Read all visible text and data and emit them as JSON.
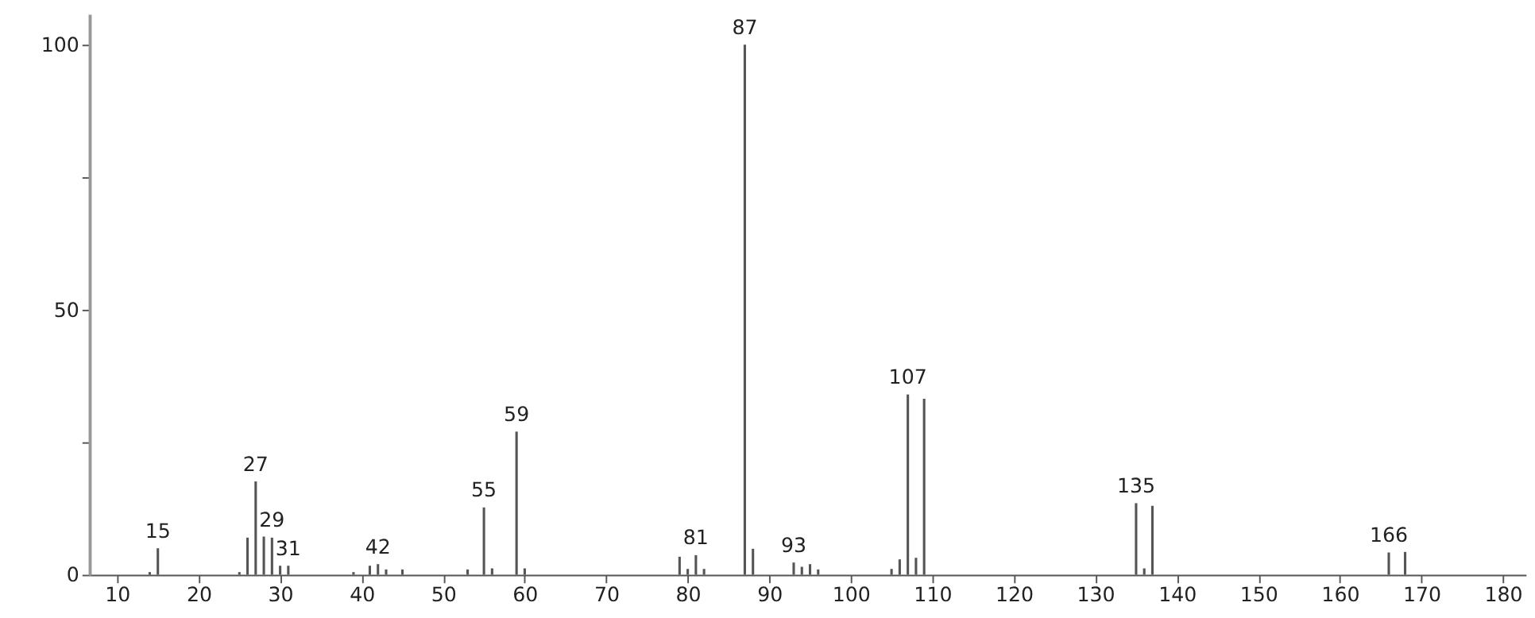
{
  "chart_data": {
    "type": "bar",
    "x": [
      14,
      15,
      25,
      26,
      27,
      28,
      29,
      30,
      31,
      39,
      41,
      42,
      43,
      45,
      53,
      55,
      56,
      59,
      60,
      79,
      80,
      81,
      82,
      87,
      88,
      93,
      94,
      95,
      96,
      105,
      106,
      107,
      108,
      109,
      135,
      136,
      137,
      166,
      168
    ],
    "values": [
      0.5,
      5,
      0.5,
      7,
      17.6,
      7.2,
      7,
      1.7,
      1.7,
      0.5,
      1.7,
      2,
      1,
      1,
      1,
      12.7,
      1.2,
      27,
      1.2,
      3.4,
      1.1,
      3.7,
      1.1,
      100,
      4.9,
      2.3,
      1.5,
      2,
      1,
      1.1,
      2.9,
      34,
      3.2,
      33.2,
      13.5,
      1.2,
      13,
      4.2,
      4.3
    ],
    "color": "#555555",
    "xlim": [
      6.6,
      182.8
    ],
    "xticks": [
      10,
      20,
      30,
      40,
      50,
      60,
      70,
      80,
      90,
      100,
      110,
      120,
      130,
      140,
      150,
      160,
      170,
      180
    ],
    "ylim": [
      0,
      105.8
    ],
    "yticks": [
      0,
      {
        "value": 25,
        "label": null
      },
      50,
      {
        "value": 75,
        "label": null
      },
      100
    ],
    "annotations": [
      {
        "text": "15",
        "x": 15,
        "y": 5
      },
      {
        "text": "27",
        "x": 27,
        "y": 17.6
      },
      {
        "text": "29",
        "x": 29,
        "y": 7
      },
      {
        "text": "31",
        "x": 31,
        "y": 1.7
      },
      {
        "text": "42",
        "x": 42,
        "y": 2
      },
      {
        "text": "55",
        "x": 55,
        "y": 12.7
      },
      {
        "text": "59",
        "x": 59,
        "y": 27
      },
      {
        "text": "81",
        "x": 81,
        "y": 3.7
      },
      {
        "text": "87",
        "x": 87,
        "y": 100
      },
      {
        "text": "93",
        "x": 93,
        "y": 2.3
      },
      {
        "text": "107",
        "x": 107,
        "y": 34
      },
      {
        "text": "135",
        "x": 135,
        "y": 13.5
      },
      {
        "text": "166",
        "x": 166,
        "y": 4.2
      }
    ]
  }
}
